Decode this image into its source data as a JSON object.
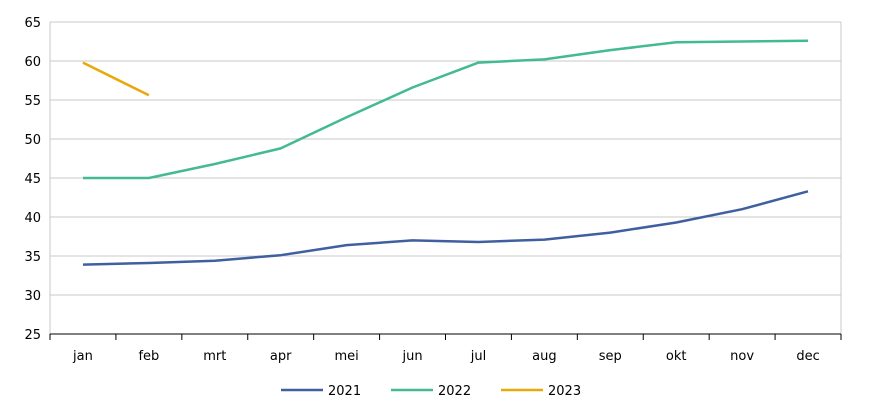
{
  "chart_data": {
    "type": "line",
    "categories": [
      "jan",
      "feb",
      "mrt",
      "apr",
      "mei",
      "jun",
      "jul",
      "aug",
      "sep",
      "okt",
      "nov",
      "dec"
    ],
    "series": [
      {
        "name": "2021",
        "color": "#3f5fa0",
        "values": [
          33.9,
          34.1,
          34.4,
          35.1,
          36.4,
          37.0,
          36.8,
          37.1,
          38.0,
          39.3,
          41.0,
          43.3
        ]
      },
      {
        "name": "2022",
        "color": "#43b994",
        "values": [
          45.0,
          45.0,
          46.8,
          48.8,
          52.8,
          56.6,
          59.8,
          60.2,
          61.4,
          62.4,
          62.5,
          62.6
        ]
      },
      {
        "name": "2023",
        "color": "#e8a90a",
        "values": [
          59.8,
          55.6,
          null,
          null,
          null,
          null,
          null,
          null,
          null,
          null,
          null,
          null
        ]
      }
    ],
    "yticks": [
      25,
      30,
      35,
      40,
      45,
      50,
      55,
      60,
      65
    ],
    "ylim": [
      25,
      65
    ],
    "grid": true,
    "legend_position": "bottom"
  }
}
